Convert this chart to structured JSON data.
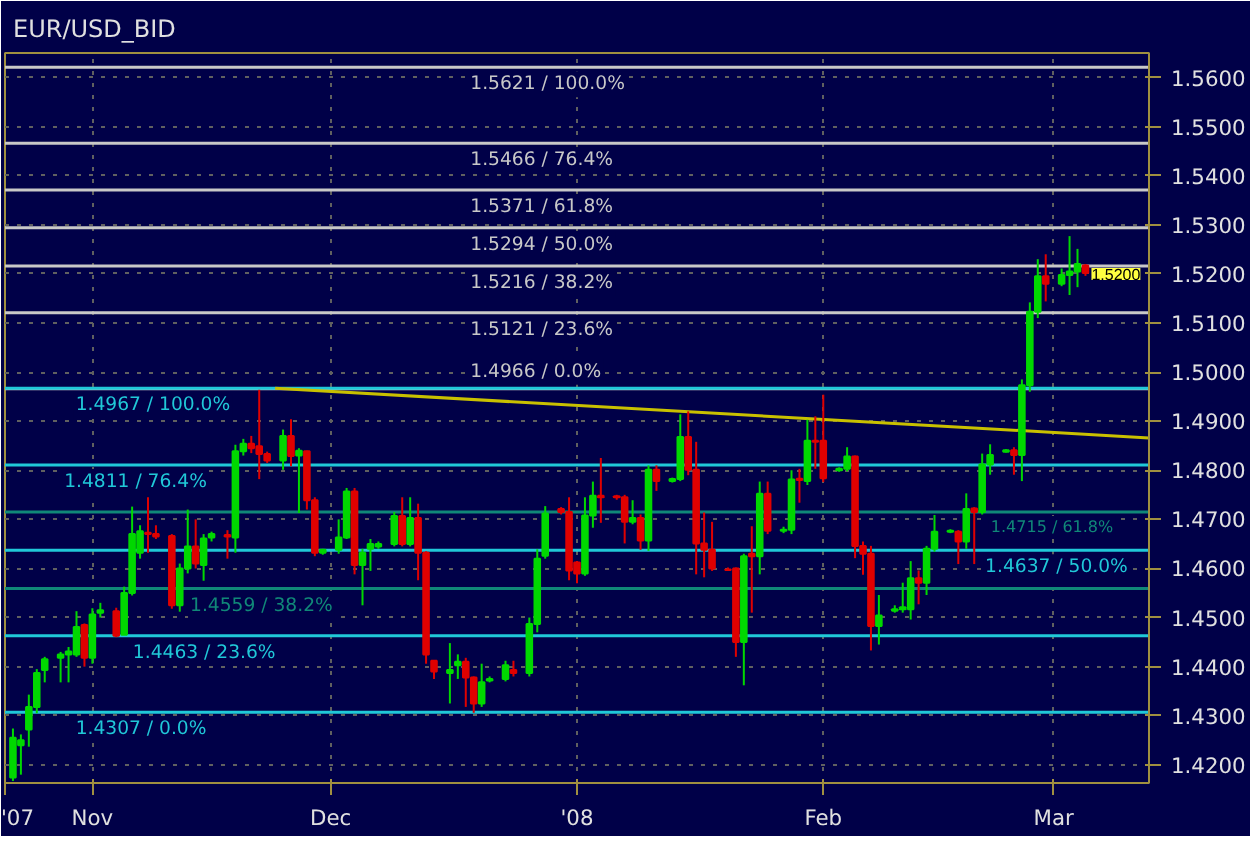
{
  "chart_data": {
    "type": "candlestick",
    "title": "EUR/USD_BID",
    "x": [
      "2007-10-22",
      "2007-10-23",
      "2007-10-24",
      "2007-10-25",
      "2007-10-26",
      "2007-10-28",
      "2007-10-29",
      "2007-10-30",
      "2007-10-31",
      "2007-11-01",
      "2007-11-02",
      "2007-11-04",
      "2007-11-05",
      "2007-11-06",
      "2007-11-07",
      "2007-11-08",
      "2007-11-09",
      "2007-11-11",
      "2007-11-12",
      "2007-11-13",
      "2007-11-14",
      "2007-11-15",
      "2007-11-16",
      "2007-11-18",
      "2007-11-19",
      "2007-11-20",
      "2007-11-21",
      "2007-11-22",
      "2007-11-23",
      "2007-11-25",
      "2007-11-26",
      "2007-11-27",
      "2007-11-28",
      "2007-11-29",
      "2007-11-30",
      "2007-12-02",
      "2007-12-03",
      "2007-12-04",
      "2007-12-05",
      "2007-12-06",
      "2007-12-07",
      "2007-12-09",
      "2007-12-10",
      "2007-12-11",
      "2007-12-12",
      "2007-12-13",
      "2007-12-14",
      "2007-12-16",
      "2007-12-17",
      "2007-12-18",
      "2007-12-19",
      "2007-12-20",
      "2007-12-21",
      "2007-12-23",
      "2007-12-24",
      "2007-12-26",
      "2007-12-27",
      "2007-12-28",
      "2007-12-30",
      "2007-12-31",
      "2008-01-01",
      "2008-01-02",
      "2008-01-03",
      "2008-01-04",
      "2008-01-06",
      "2008-01-07",
      "2008-01-08",
      "2008-01-09",
      "2008-01-10",
      "2008-01-11",
      "2008-01-13",
      "2008-01-14",
      "2008-01-15",
      "2008-01-16",
      "2008-01-17",
      "2008-01-18",
      "2008-01-20",
      "2008-01-21",
      "2008-01-22",
      "2008-01-23",
      "2008-01-24",
      "2008-01-25",
      "2008-01-27",
      "2008-01-28",
      "2008-01-29",
      "2008-01-30",
      "2008-01-31",
      "2008-02-01",
      "2008-02-03",
      "2008-02-04",
      "2008-02-05",
      "2008-02-06",
      "2008-02-07",
      "2008-02-08",
      "2008-02-10",
      "2008-02-11",
      "2008-02-12",
      "2008-02-13",
      "2008-02-14",
      "2008-02-15",
      "2008-02-17",
      "2008-02-18",
      "2008-02-19",
      "2008-02-20",
      "2008-02-21",
      "2008-02-22",
      "2008-02-24",
      "2008-02-25",
      "2008-02-26",
      "2008-02-27",
      "2008-02-28",
      "2008-02-29",
      "2008-03-02",
      "2008-03-03",
      "2008-03-04",
      "2008-03-05"
    ],
    "ohlc": [
      [
        1.4174,
        1.4274,
        1.4167,
        1.4255
      ],
      [
        1.424,
        1.4262,
        1.418,
        1.425
      ],
      [
        1.4272,
        1.4343,
        1.4237,
        1.4318
      ],
      [
        1.4318,
        1.4395,
        1.4305,
        1.4387
      ],
      [
        1.4393,
        1.442,
        1.4368,
        1.4415
      ],
      [
        1.4418,
        1.443,
        1.4368,
        1.4425
      ],
      [
        1.4425,
        1.444,
        1.4368,
        1.4431
      ],
      [
        1.4425,
        1.4513,
        1.442,
        1.4481
      ],
      [
        1.4485,
        1.4488,
        1.44,
        1.4418
      ],
      [
        1.4418,
        1.4519,
        1.4406,
        1.4506
      ],
      [
        1.451,
        1.453,
        1.45,
        1.4515
      ],
      [
        1.4513,
        1.452,
        1.446,
        1.4463
      ],
      [
        1.4465,
        1.4563,
        1.4465,
        1.455
      ],
      [
        1.455,
        1.4726,
        1.4545,
        1.467
      ],
      [
        1.4632,
        1.4688,
        1.462,
        1.4676
      ],
      [
        1.4673,
        1.4745,
        1.4632,
        1.467
      ],
      [
        1.467,
        1.4688,
        1.466,
        1.4665
      ],
      [
        1.4666,
        1.467,
        1.4518,
        1.4525
      ],
      [
        1.4525,
        1.461,
        1.4512,
        1.46
      ],
      [
        1.46,
        1.472,
        1.459,
        1.4645
      ],
      [
        1.4645,
        1.47,
        1.46,
        1.461
      ],
      [
        1.4607,
        1.467,
        1.4575,
        1.4661
      ],
      [
        1.4663,
        1.4675,
        1.4655,
        1.467
      ],
      [
        1.4668,
        1.4678,
        1.462,
        1.4665
      ],
      [
        1.4663,
        1.4852,
        1.4632,
        1.4839
      ],
      [
        1.4839,
        1.4864,
        1.483,
        1.4854
      ],
      [
        1.4854,
        1.487,
        1.4835,
        1.4845
      ],
      [
        1.4849,
        1.4964,
        1.4782,
        1.4833
      ],
      [
        1.4833,
        1.4838,
        1.4815,
        1.482
      ],
      [
        1.482,
        1.4883,
        1.4801,
        1.487
      ],
      [
        1.487,
        1.4904,
        1.4808,
        1.4829
      ],
      [
        1.483,
        1.4845,
        1.4713,
        1.484
      ],
      [
        1.4839,
        1.484,
        1.472,
        1.4739
      ],
      [
        1.4739,
        1.4745,
        1.4625,
        1.4632
      ],
      [
        1.4632,
        1.464,
        1.4628,
        1.4638
      ],
      [
        1.4638,
        1.47,
        1.463,
        1.4663
      ],
      [
        1.4663,
        1.4764,
        1.466,
        1.4757
      ],
      [
        1.4757,
        1.4764,
        1.4588,
        1.4607
      ],
      [
        1.4607,
        1.464,
        1.4525,
        1.4632
      ],
      [
        1.464,
        1.466,
        1.4595,
        1.465
      ],
      [
        1.4645,
        1.4655,
        1.464,
        1.465
      ],
      [
        1.465,
        1.4715,
        1.4645,
        1.4707
      ],
      [
        1.4707,
        1.4745,
        1.4645,
        1.465
      ],
      [
        1.465,
        1.4745,
        1.4645,
        1.4703
      ],
      [
        1.4703,
        1.4732,
        1.4576,
        1.4632
      ],
      [
        1.4632,
        1.4635,
        1.4406,
        1.4425
      ],
      [
        1.4412,
        1.4412,
        1.4375,
        1.439
      ],
      [
        1.4387,
        1.4448,
        1.4325,
        1.4393
      ],
      [
        1.4403,
        1.4425,
        1.4375,
        1.441
      ],
      [
        1.441,
        1.4418,
        1.4318,
        1.4378
      ],
      [
        1.4378,
        1.438,
        1.4306,
        1.4325
      ],
      [
        1.4325,
        1.4406,
        1.4318,
        1.4368
      ],
      [
        1.4372,
        1.438,
        1.4368,
        1.4375
      ],
      [
        1.4375,
        1.4412,
        1.437,
        1.4403
      ],
      [
        1.4393,
        1.4412,
        1.438,
        1.4387
      ],
      [
        1.4387,
        1.45,
        1.438,
        1.4487
      ],
      [
        1.4487,
        1.4639,
        1.447,
        1.462
      ],
      [
        1.4626,
        1.4727,
        1.462,
        1.4712
      ],
      [
        1.4721,
        1.4725,
        1.471,
        1.4715
      ],
      [
        1.4715,
        1.4745,
        1.4576,
        1.4596
      ],
      [
        1.4612,
        1.4615,
        1.457,
        1.459
      ],
      [
        1.459,
        1.4745,
        1.4585,
        1.4708
      ],
      [
        1.4708,
        1.4777,
        1.4683,
        1.4748
      ],
      [
        1.4748,
        1.4825,
        1.4693,
        1.4745
      ],
      [
        1.4747,
        1.475,
        1.474,
        1.4745
      ],
      [
        1.4745,
        1.475,
        1.4651,
        1.4695
      ],
      [
        1.4695,
        1.4739,
        1.469,
        1.4703
      ],
      [
        1.4703,
        1.471,
        1.4638,
        1.4657
      ],
      [
        1.4657,
        1.481,
        1.4636,
        1.4801
      ],
      [
        1.4801,
        1.481,
        1.4758,
        1.4778
      ],
      [
        1.4778,
        1.4785,
        1.4775,
        1.4782
      ],
      [
        1.4782,
        1.4914,
        1.4778,
        1.4868
      ],
      [
        1.4868,
        1.492,
        1.479,
        1.4801
      ],
      [
        1.4801,
        1.4858,
        1.4588,
        1.4651
      ],
      [
        1.4651,
        1.4714,
        1.4582,
        1.4638
      ],
      [
        1.4638,
        1.4695,
        1.4595,
        1.46
      ],
      [
        1.4598,
        1.4602,
        1.4595,
        1.4597
      ],
      [
        1.46,
        1.4602,
        1.442,
        1.445
      ],
      [
        1.445,
        1.463,
        1.4362,
        1.4625
      ],
      [
        1.463,
        1.4686,
        1.451,
        1.4625
      ],
      [
        1.4625,
        1.4777,
        1.4588,
        1.4752
      ],
      [
        1.4752,
        1.4777,
        1.467,
        1.4677
      ],
      [
        1.4677,
        1.4685,
        1.4672,
        1.4679
      ],
      [
        1.4679,
        1.48,
        1.467,
        1.4781
      ],
      [
        1.4783,
        1.4803,
        1.4734,
        1.478
      ],
      [
        1.4778,
        1.4903,
        1.477,
        1.486
      ],
      [
        1.486,
        1.491,
        1.4803,
        1.4858
      ],
      [
        1.486,
        1.4954,
        1.4776,
        1.4784
      ],
      [
        1.48,
        1.4806,
        1.4797,
        1.4803
      ],
      [
        1.4803,
        1.4847,
        1.4798,
        1.4828
      ],
      [
        1.4828,
        1.483,
        1.4621,
        1.4646
      ],
      [
        1.4646,
        1.4655,
        1.4587,
        1.463
      ],
      [
        1.463,
        1.4646,
        1.4433,
        1.4483
      ],
      [
        1.4483,
        1.4546,
        1.4445,
        1.4504
      ],
      [
        1.4514,
        1.4525,
        1.451,
        1.4517
      ],
      [
        1.4517,
        1.4571,
        1.451,
        1.4521
      ],
      [
        1.4517,
        1.4615,
        1.4496,
        1.458
      ],
      [
        1.458,
        1.4596,
        1.4527,
        1.4571
      ],
      [
        1.4571,
        1.4646,
        1.4546,
        1.464
      ],
      [
        1.464,
        1.4709,
        1.4634,
        1.4675
      ],
      [
        1.4675,
        1.468,
        1.4672,
        1.4677
      ],
      [
        1.4675,
        1.4678,
        1.4609,
        1.4655
      ],
      [
        1.4655,
        1.4753,
        1.464,
        1.4721
      ],
      [
        1.4722,
        1.4725,
        1.4609,
        1.4715
      ],
      [
        1.4715,
        1.4834,
        1.471,
        1.4812
      ],
      [
        1.4812,
        1.4853,
        1.4791,
        1.4831
      ],
      [
        1.4838,
        1.4843,
        1.4836,
        1.4841
      ],
      [
        1.4841,
        1.4847,
        1.4791,
        1.4831
      ],
      [
        1.4831,
        1.4985,
        1.4778,
        1.4973
      ],
      [
        1.4973,
        1.5142,
        1.496,
        1.5123
      ],
      [
        1.5123,
        1.523,
        1.511,
        1.5195
      ],
      [
        1.5195,
        1.524,
        1.5144,
        1.518
      ],
      [
        1.518,
        1.5211,
        1.5175,
        1.5198
      ],
      [
        1.5198,
        1.5277,
        1.5157,
        1.5205
      ],
      [
        1.5205,
        1.5251,
        1.5173,
        1.522
      ],
      [
        1.5217,
        1.522,
        1.5196,
        1.5202
      ]
    ],
    "series": [
      {
        "type": "line",
        "color": "#c8c000",
        "x": [
          "2007-11-24",
          "2008-03-13"
        ],
        "values": [
          1.4967,
          1.4866
        ]
      }
    ],
    "xlim": [
      "2007-10-21",
      "2008-03-13"
    ],
    "xticks": [
      {
        "value": "2007-10-21",
        "label": "'07"
      },
      {
        "value": "2007-11-01",
        "label": "Nov"
      },
      {
        "value": "2007-12-01",
        "label": "Dec"
      },
      {
        "value": "2008-01-01",
        "label": "'08"
      },
      {
        "value": "2008-02-01",
        "label": "Feb"
      },
      {
        "value": "2008-03-01",
        "label": "Mar"
      }
    ],
    "ylim": [
      1.4163,
      1.565
    ],
    "yticks": [
      {
        "value": 1.42,
        "label": "1.4200"
      },
      {
        "value": 1.43,
        "label": "1.4300"
      },
      {
        "value": 1.44,
        "label": "1.4400"
      },
      {
        "value": 1.45,
        "label": "1.4500"
      },
      {
        "value": 1.46,
        "label": "1.4600"
      },
      {
        "value": 1.47,
        "label": "1.4700"
      },
      {
        "value": 1.48,
        "label": "1.4800"
      },
      {
        "value": 1.49,
        "label": "1.4900"
      },
      {
        "value": 1.5,
        "label": "1.5000"
      },
      {
        "value": 1.51,
        "label": "1.5100"
      },
      {
        "value": 1.52,
        "label": "1.5200"
      },
      {
        "value": 1.53,
        "label": "1.5300"
      },
      {
        "value": 1.54,
        "label": "1.5400"
      },
      {
        "value": 1.55,
        "label": "1.5500"
      },
      {
        "value": 1.56,
        "label": "1.5600"
      }
    ],
    "ref_lines": [
      {
        "axis": "y",
        "value": 1.5621,
        "label": "1.5621 / 100.0%",
        "color": "#c8c8c8"
      },
      {
        "axis": "y",
        "value": 1.5466,
        "label": "1.5466 / 76.4%",
        "color": "#c8c8c8"
      },
      {
        "axis": "y",
        "value": 1.5371,
        "label": "1.5371 / 61.8%",
        "color": "#c8c8c8"
      },
      {
        "axis": "y",
        "value": 1.5294,
        "label": "1.5294 / 50.0%",
        "color": "#c8c8c8"
      },
      {
        "axis": "y",
        "value": 1.5216,
        "label": "1.5216 / 38.2%",
        "color": "#c8c8c8"
      },
      {
        "axis": "y",
        "value": 1.5121,
        "label": "1.5121 / 23.6%",
        "color": "#c8c8c8"
      },
      {
        "axis": "y",
        "value": 1.4966,
        "label": "1.4966 / 0.0%",
        "color": "#c8c8c8"
      },
      {
        "axis": "y",
        "value": 1.4967,
        "label": "1.4967 / 100.0%",
        "color": "#20c8d8"
      },
      {
        "axis": "y",
        "value": 1.4811,
        "label": "1.4811 / 76.4%",
        "color": "#20c8d8"
      },
      {
        "axis": "y",
        "value": 1.4715,
        "label": "1.4715 / 61.8%",
        "color": "#108878"
      },
      {
        "axis": "y",
        "value": 1.4637,
        "label": "1.4637 / 50.0%",
        "color": "#20c8d8"
      },
      {
        "axis": "y",
        "value": 1.4559,
        "label": "1.4559 / 38.2%",
        "color": "#108878"
      },
      {
        "axis": "y",
        "value": 1.4463,
        "label": "1.4463 / 23.6%",
        "color": "#20c8d8"
      },
      {
        "axis": "y",
        "value": 1.4307,
        "label": "1.4307 / 0.0%",
        "color": "#20c8d8"
      }
    ],
    "annotations": [
      {
        "text": "1.5200",
        "x": "2008-03-05",
        "y": 1.52
      }
    ],
    "grid": true
  }
}
